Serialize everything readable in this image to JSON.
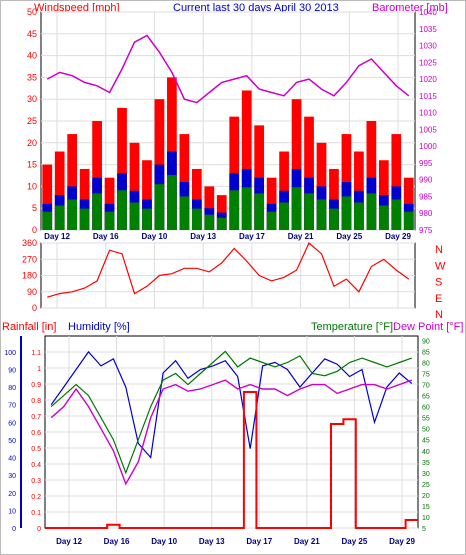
{
  "header": {
    "windspeed_label": "Windspeed [mph]",
    "title": "Current last 30 days April 30 2013",
    "barometer_label": "Barometer [mb]"
  },
  "colors": {
    "wind": "#ff0000",
    "gust": "#ff0000",
    "avg_wind": "#0000cc",
    "wind_green": "#008000",
    "barometer": "#cc00cc",
    "direction": "#ff0000",
    "rain": "#ff0000",
    "humidity": "#0000cc",
    "temperature": "#007700",
    "dewpoint": "#cc00cc",
    "title": "#0000cc",
    "compass": "#ff0000"
  },
  "x_ticks": [
    "Day 12",
    "Day 16",
    "Day 10",
    "Day 13",
    "Day 17",
    "Day 21",
    "Day 25",
    "Day 29"
  ],
  "chart_data": [
    {
      "type": "bar",
      "name": "wind",
      "title": "Current last 30 days April 30 2013",
      "ylabel": "Windspeed [mph]",
      "ylim": [
        0,
        50
      ],
      "y_ticks": [
        0,
        5,
        10,
        15,
        20,
        25,
        30,
        35,
        40,
        45,
        50
      ],
      "y2label": "Barometer [mb]",
      "y2lim": [
        975,
        1040
      ],
      "y2_ticks": [
        975,
        980,
        985,
        990,
        995,
        1000,
        1005,
        1010,
        1015,
        1020,
        1025,
        1030,
        1035,
        1040
      ],
      "x_ticks": [
        "Day 12",
        "Day 16",
        "Day 10",
        "Day 13",
        "Day 17",
        "Day 21",
        "Day 25",
        "Day 29"
      ],
      "series": [
        {
          "name": "Gust",
          "values": [
            15,
            18,
            22,
            14,
            25,
            12,
            28,
            20,
            16,
            30,
            35,
            22,
            14,
            10,
            8,
            26,
            32,
            24,
            12,
            18,
            30,
            26,
            20,
            14,
            22,
            18,
            25,
            16,
            22,
            12
          ]
        },
        {
          "name": "Average",
          "values": [
            6,
            8,
            10,
            7,
            12,
            6,
            13,
            9,
            7,
            15,
            18,
            11,
            7,
            5,
            4,
            13,
            14,
            12,
            6,
            9,
            14,
            12,
            10,
            7,
            11,
            9,
            12,
            8,
            10,
            6
          ]
        },
        {
          "name": "Barometer",
          "values": [
            1020,
            1022,
            1021,
            1019,
            1018,
            1016,
            1023,
            1031,
            1033,
            1028,
            1022,
            1014,
            1013,
            1016,
            1019,
            1020,
            1021,
            1017,
            1016,
            1015,
            1019,
            1020,
            1017,
            1015,
            1019,
            1024,
            1026,
            1022,
            1018,
            1015
          ]
        }
      ]
    },
    {
      "type": "line",
      "name": "wind-direction",
      "ylim": [
        0,
        360
      ],
      "y_ticks": [
        0,
        90,
        180,
        270,
        360
      ],
      "compass_labels": [
        "N",
        "W",
        "S",
        "E",
        "N"
      ],
      "series": [
        {
          "name": "Direction",
          "values": [
            60,
            80,
            90,
            110,
            150,
            320,
            300,
            80,
            120,
            180,
            190,
            220,
            220,
            200,
            250,
            330,
            260,
            180,
            150,
            170,
            210,
            360,
            300,
            120,
            160,
            90,
            230,
            270,
            210,
            160
          ]
        }
      ]
    },
    {
      "type": "line",
      "name": "rain-humidity-temp",
      "rain_label": "Rainfall [in]",
      "humidity_label": "Humidity [%]",
      "temperature_label": "Temperature [°F]",
      "dewpoint_label": "Dew Point [°F]",
      "rain_ticks": [
        0,
        0.1,
        0.2,
        0.3,
        0.4,
        0.5,
        0.6,
        0.7,
        0.8,
        0.9,
        1,
        1.1
      ],
      "rain_tick_labels": [
        "0",
        "0.1",
        "0.2",
        "0.3",
        "0.4",
        "0.5",
        "0.6",
        "0.7",
        "0.8",
        "0.9",
        "1",
        "1.1"
      ],
      "rain_lim": [
        0,
        1.2
      ],
      "humidity_ticks": [
        0,
        10,
        20,
        30,
        40,
        50,
        60,
        70,
        80,
        90,
        100
      ],
      "humidity_lim": [
        0,
        109
      ],
      "temp_ticks": [
        5,
        10,
        15,
        20,
        25,
        30,
        35,
        40,
        45,
        50,
        55,
        60,
        65,
        70,
        75,
        80,
        85,
        90
      ],
      "temp_lim": [
        5,
        92
      ],
      "series": [
        {
          "name": "Rainfall",
          "values": [
            0,
            0,
            0,
            0,
            0,
            0.02,
            0,
            0,
            0,
            0,
            0,
            0,
            0,
            0,
            0,
            0,
            0.85,
            0,
            0,
            0,
            0,
            0,
            0,
            0.65,
            0.68,
            0,
            0,
            0,
            0,
            0.05
          ]
        },
        {
          "name": "Humidity",
          "values": [
            70,
            80,
            90,
            100,
            92,
            96,
            80,
            48,
            40,
            88,
            95,
            85,
            90,
            92,
            95,
            86,
            45,
            92,
            94,
            90,
            80,
            88,
            96,
            93,
            86,
            90,
            60,
            80,
            88,
            82
          ]
        },
        {
          "name": "Temperature",
          "values": [
            60,
            65,
            70,
            65,
            55,
            45,
            30,
            45,
            60,
            72,
            75,
            70,
            75,
            80,
            85,
            78,
            82,
            80,
            78,
            80,
            83,
            75,
            74,
            76,
            80,
            82,
            80,
            78,
            80,
            82
          ]
        },
        {
          "name": "Dew Point",
          "values": [
            55,
            60,
            68,
            60,
            50,
            40,
            25,
            35,
            55,
            68,
            70,
            67,
            68,
            70,
            72,
            68,
            70,
            68,
            68,
            65,
            68,
            70,
            70,
            66,
            68,
            70,
            70,
            68,
            70,
            72
          ]
        }
      ]
    }
  ]
}
